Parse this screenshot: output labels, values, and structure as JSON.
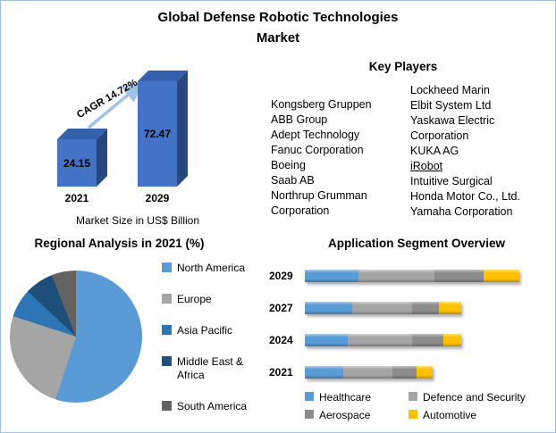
{
  "title": "Global Defense Robotic Technologies Market",
  "key_players": {
    "heading": "Key Players",
    "column_left": [
      "Kongsberg Gruppen",
      "ABB Group",
      "Adept Technology",
      "Fanuc Corporation",
      "Boeing",
      "Saab AB",
      "Northrup Grumman Corporation"
    ],
    "column_right": [
      {
        "label": "Lockheed Marin"
      },
      {
        "label": "Elbit System Ltd"
      },
      {
        "label": "Yaskawa Electric Corporation"
      },
      {
        "label": "KUKA AG"
      },
      {
        "label": "iRobot",
        "underline": true
      },
      {
        "label": "Intuitive Surgical"
      },
      {
        "label": "Honda Motor Co., Ltd."
      },
      {
        "label": "Yamaha Corporation"
      }
    ]
  },
  "chart_data": [
    {
      "id": "market-size",
      "type": "bar",
      "title": "Global Defense Robotic Technologies Market",
      "categories": [
        "2021",
        "2029"
      ],
      "values": [
        24.15,
        72.47
      ],
      "value_labels": [
        "24.15",
        "72.47"
      ],
      "xlabel": "Market Size in US$ Billion",
      "ylabel": "",
      "annotation": "CAGR 14.72%",
      "bar_color": "#4472C4",
      "bar_side_color": "#27477E",
      "bar_top_color": "#3560AC",
      "arrow_color": "#9DC3E6"
    },
    {
      "id": "regional-analysis",
      "type": "pie",
      "title": "Regional Analysis in 2021 (%)",
      "labels": [
        "North America",
        "Europe",
        "Asia Pacific",
        "Middle East & Africa",
        "South America"
      ],
      "values": [
        55,
        25,
        7,
        7,
        6
      ],
      "colors": [
        "#5B9BD5",
        "#A5A5A5",
        "#2E75B6",
        "#1F4E79",
        "#636363"
      ],
      "legend_position": "right"
    },
    {
      "id": "application-segments",
      "type": "bar",
      "stacked": true,
      "orientation": "horizontal",
      "title": "Application Segment Overview",
      "categories": [
        "2029",
        "2027",
        "2024",
        "2021"
      ],
      "series": [
        {
          "name": "Healthcare",
          "color": "#5B9BD5",
          "values": [
            24,
            21,
            19,
            17
          ]
        },
        {
          "name": "Defence and Security",
          "color": "#A5A5A5",
          "values": [
            34,
            27,
            29,
            22
          ]
        },
        {
          "name": "Aerospace",
          "color": "#8C8C8C",
          "values": [
            22,
            12,
            14,
            11
          ]
        },
        {
          "name": "Automotive",
          "color": "#FFC000",
          "values": [
            16,
            10,
            8,
            7
          ]
        }
      ],
      "legend_position": "bottom"
    }
  ]
}
